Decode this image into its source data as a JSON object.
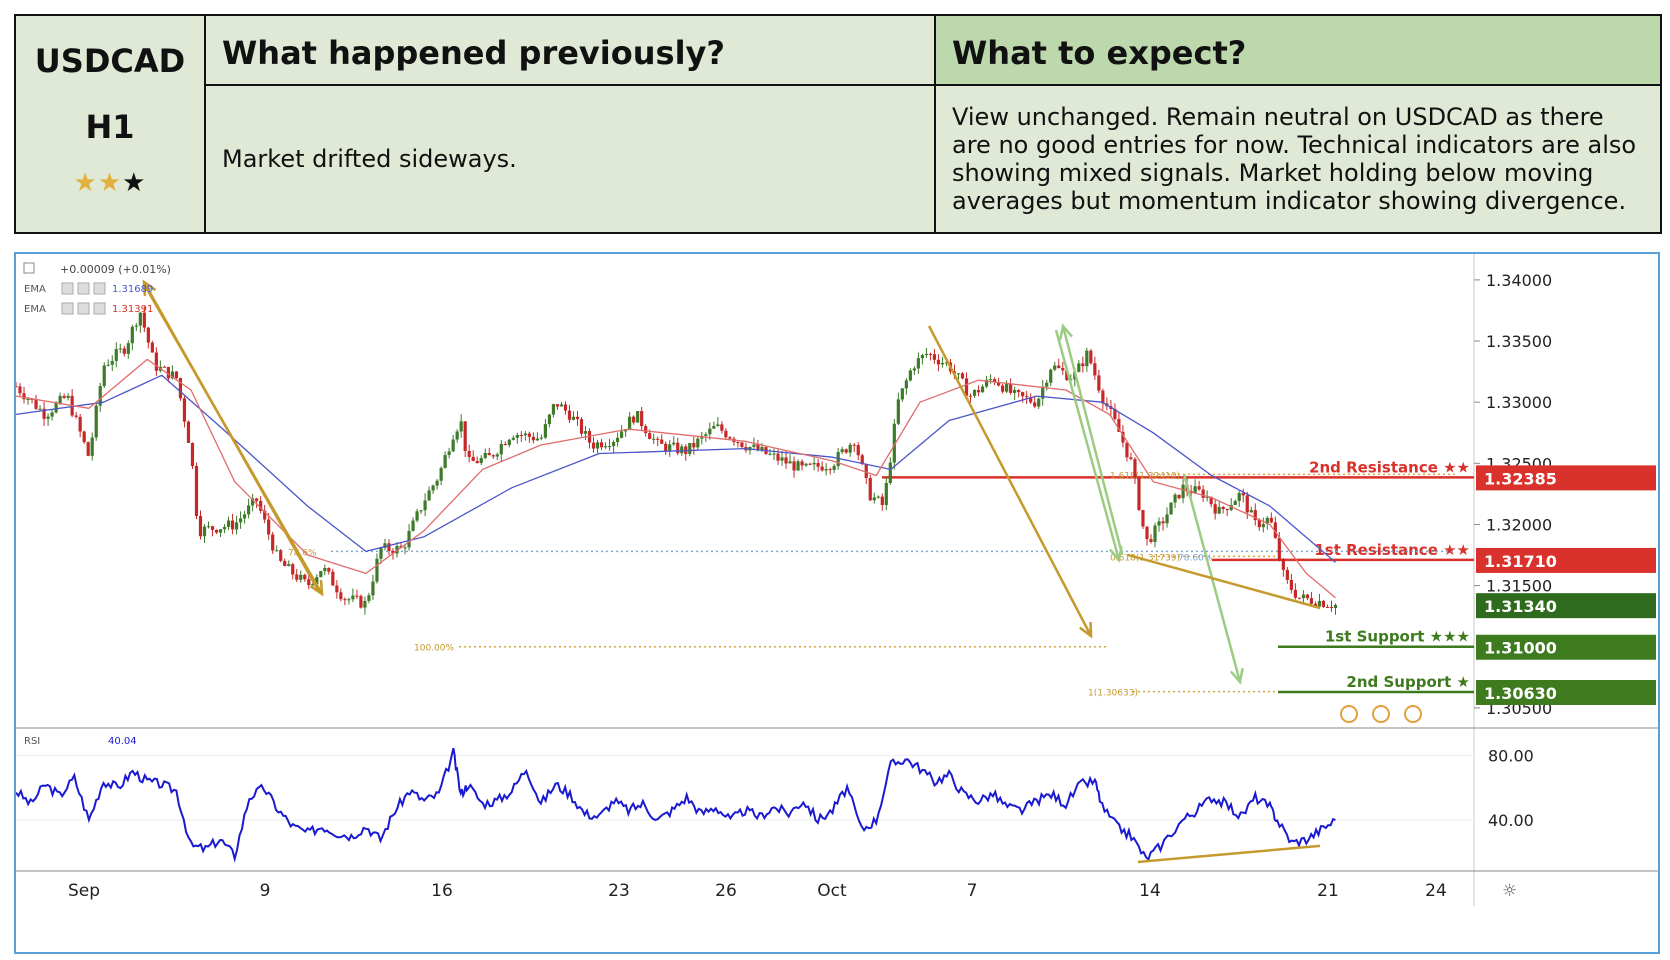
{
  "header": {
    "symbol": "USDCAD",
    "timeframe": "H1",
    "stars_filled": 2,
    "stars_total": 3,
    "prev_title": "What happened previously?",
    "prev_text": "Market drifted sideways.",
    "next_title": "What to expect?",
    "next_text": "View unchanged. Remain neutral on USDCAD as there are no good entries for now. Technical indicators are also showing mixed signals. Market holding below moving averages but momentum indicator showing divergence."
  },
  "colors": {
    "resistance": "#d9312b",
    "support": "#3e7a1e",
    "candle_up": "#3d7a2a",
    "candle_down": "#c62828",
    "ema_fast": "#e06c6c",
    "ema_slow": "#4a56c8",
    "rsi": "#1a1ad0",
    "arrow_gold": "#c49a2c",
    "arrow_green": "#9ccc82"
  },
  "chart_data": [
    {
      "type": "candlestick",
      "instrument": "USDCAD",
      "x_labels": [
        "Sep",
        "9",
        "16",
        "23",
        "26",
        "Oct",
        "7",
        "14",
        "21",
        "24"
      ],
      "y_ticks": [
        "1.34000",
        "1.33500",
        "1.33000",
        "1.32500",
        "1.32000",
        "1.31500",
        "1.30500"
      ],
      "ylim": [
        1.3045,
        1.3413
      ],
      "legend": {
        "change": "+0.00009 (+0.01%)",
        "ema1_label": "EMA",
        "ema1_value": "1.31689",
        "ema2_label": "EMA",
        "ema2_value": "1.31391"
      },
      "levels": [
        {
          "name": "2nd Resistance ★★",
          "value": 1.32385,
          "label": "1.32385",
          "kind": "resistance"
        },
        {
          "name": "1st Resistance ★★",
          "value": 1.3171,
          "label": "1.31710",
          "kind": "resistance"
        },
        {
          "name": "1st Support ★★★",
          "value": 1.31,
          "label": "1.31000",
          "kind": "support"
        },
        {
          "name": "2nd Support ★",
          "value": 1.3063,
          "label": "1.30630",
          "kind": "support"
        }
      ],
      "current_price": {
        "value": 1.3134,
        "label": "1.31340"
      },
      "fib_labels": [
        "78.6%",
        "100.00%",
        "1.618(1.32410)",
        "0.618(1.31739)",
        "78.60%",
        "1(1.30633)"
      ],
      "price_path": [
        [
          0.0,
          1.3313
        ],
        [
          0.02,
          1.329
        ],
        [
          0.035,
          1.3305
        ],
        [
          0.05,
          1.3255
        ],
        [
          0.06,
          1.333
        ],
        [
          0.075,
          1.3345
        ],
        [
          0.085,
          1.3375
        ],
        [
          0.095,
          1.333
        ],
        [
          0.11,
          1.332
        ],
        [
          0.12,
          1.326
        ],
        [
          0.125,
          1.3195
        ],
        [
          0.15,
          1.32
        ],
        [
          0.165,
          1.322
        ],
        [
          0.18,
          1.317
        ],
        [
          0.2,
          1.315
        ],
        [
          0.21,
          1.3165
        ],
        [
          0.225,
          1.314
        ],
        [
          0.24,
          1.3135
        ],
        [
          0.25,
          1.318
        ],
        [
          0.265,
          1.318
        ],
        [
          0.28,
          1.322
        ],
        [
          0.29,
          1.324
        ],
        [
          0.3,
          1.3275
        ],
        [
          0.305,
          1.3285
        ],
        [
          0.31,
          1.325
        ],
        [
          0.325,
          1.3255
        ],
        [
          0.34,
          1.3275
        ],
        [
          0.36,
          1.327
        ],
        [
          0.37,
          1.33
        ],
        [
          0.38,
          1.329
        ],
        [
          0.395,
          1.3265
        ],
        [
          0.41,
          1.327
        ],
        [
          0.425,
          1.329
        ],
        [
          0.44,
          1.3265
        ],
        [
          0.46,
          1.326
        ],
        [
          0.48,
          1.328
        ],
        [
          0.5,
          1.3265
        ],
        [
          0.52,
          1.3255
        ],
        [
          0.54,
          1.3245
        ],
        [
          0.56,
          1.325
        ],
        [
          0.575,
          1.327
        ],
        [
          0.585,
          1.3225
        ],
        [
          0.595,
          1.3215
        ],
        [
          0.605,
          1.33
        ],
        [
          0.615,
          1.333
        ],
        [
          0.625,
          1.334
        ],
        [
          0.64,
          1.333
        ],
        [
          0.655,
          1.3305
        ],
        [
          0.67,
          1.332
        ],
        [
          0.685,
          1.3305
        ],
        [
          0.7,
          1.33
        ],
        [
          0.71,
          1.333
        ],
        [
          0.725,
          1.332
        ],
        [
          0.735,
          1.334
        ],
        [
          0.745,
          1.3305
        ],
        [
          0.755,
          1.328
        ],
        [
          0.765,
          1.325
        ],
        [
          0.775,
          1.3185
        ],
        [
          0.785,
          1.32
        ],
        [
          0.8,
          1.323
        ],
        [
          0.815,
          1.3225
        ],
        [
          0.825,
          1.321
        ],
        [
          0.84,
          1.3225
        ],
        [
          0.85,
          1.32
        ],
        [
          0.86,
          1.3205
        ],
        [
          0.87,
          1.3155
        ],
        [
          0.88,
          1.314
        ],
        [
          0.895,
          1.3137
        ],
        [
          0.905,
          1.3134
        ]
      ],
      "ema_fast": [
        [
          0.0,
          1.3305
        ],
        [
          0.05,
          1.3295
        ],
        [
          0.09,
          1.3335
        ],
        [
          0.12,
          1.331
        ],
        [
          0.15,
          1.3235
        ],
        [
          0.2,
          1.3175
        ],
        [
          0.24,
          1.316
        ],
        [
          0.28,
          1.3195
        ],
        [
          0.32,
          1.3245
        ],
        [
          0.36,
          1.3265
        ],
        [
          0.42,
          1.3278
        ],
        [
          0.5,
          1.3268
        ],
        [
          0.56,
          1.3252
        ],
        [
          0.59,
          1.324
        ],
        [
          0.62,
          1.33
        ],
        [
          0.66,
          1.3318
        ],
        [
          0.72,
          1.331
        ],
        [
          0.75,
          1.329
        ],
        [
          0.78,
          1.3235
        ],
        [
          0.82,
          1.3222
        ],
        [
          0.86,
          1.32
        ],
        [
          0.885,
          1.316
        ],
        [
          0.905,
          1.314
        ]
      ],
      "ema_slow": [
        [
          0.0,
          1.329
        ],
        [
          0.06,
          1.33
        ],
        [
          0.1,
          1.3322
        ],
        [
          0.14,
          1.328
        ],
        [
          0.2,
          1.3215
        ],
        [
          0.24,
          1.3178
        ],
        [
          0.28,
          1.319
        ],
        [
          0.34,
          1.323
        ],
        [
          0.4,
          1.3258
        ],
        [
          0.5,
          1.3262
        ],
        [
          0.56,
          1.3255
        ],
        [
          0.6,
          1.3245
        ],
        [
          0.64,
          1.3285
        ],
        [
          0.7,
          1.3305
        ],
        [
          0.745,
          1.33
        ],
        [
          0.78,
          1.3275
        ],
        [
          0.82,
          1.324
        ],
        [
          0.86,
          1.3215
        ],
        [
          0.905,
          1.3169
        ]
      ]
    },
    {
      "type": "line",
      "name": "RSI",
      "value_label": "40.04",
      "y_ticks": [
        "80.00",
        "40.00"
      ],
      "ylim": [
        14,
        92
      ],
      "values": [
        [
          0.0,
          58
        ],
        [
          0.01,
          50
        ],
        [
          0.02,
          62
        ],
        [
          0.03,
          55
        ],
        [
          0.04,
          66
        ],
        [
          0.05,
          40
        ],
        [
          0.06,
          64
        ],
        [
          0.07,
          60
        ],
        [
          0.08,
          70
        ],
        [
          0.09,
          64
        ],
        [
          0.1,
          62
        ],
        [
          0.11,
          58
        ],
        [
          0.12,
          24
        ],
        [
          0.13,
          22
        ],
        [
          0.14,
          28
        ],
        [
          0.15,
          18
        ],
        [
          0.16,
          54
        ],
        [
          0.17,
          60
        ],
        [
          0.18,
          46
        ],
        [
          0.19,
          36
        ],
        [
          0.2,
          32
        ],
        [
          0.21,
          36
        ],
        [
          0.22,
          32
        ],
        [
          0.23,
          30
        ],
        [
          0.24,
          36
        ],
        [
          0.25,
          28
        ],
        [
          0.26,
          46
        ],
        [
          0.27,
          58
        ],
        [
          0.28,
          52
        ],
        [
          0.29,
          56
        ],
        [
          0.3,
          82
        ],
        [
          0.305,
          56
        ],
        [
          0.31,
          62
        ],
        [
          0.32,
          50
        ],
        [
          0.33,
          52
        ],
        [
          0.34,
          58
        ],
        [
          0.35,
          72
        ],
        [
          0.36,
          50
        ],
        [
          0.37,
          62
        ],
        [
          0.38,
          56
        ],
        [
          0.39,
          44
        ],
        [
          0.4,
          42
        ],
        [
          0.41,
          52
        ],
        [
          0.42,
          46
        ],
        [
          0.43,
          50
        ],
        [
          0.44,
          40
        ],
        [
          0.45,
          46
        ],
        [
          0.46,
          54
        ],
        [
          0.47,
          44
        ],
        [
          0.48,
          48
        ],
        [
          0.49,
          40
        ],
        [
          0.5,
          46
        ],
        [
          0.51,
          42
        ],
        [
          0.52,
          48
        ],
        [
          0.53,
          44
        ],
        [
          0.54,
          52
        ],
        [
          0.55,
          40
        ],
        [
          0.56,
          46
        ],
        [
          0.57,
          60
        ],
        [
          0.58,
          34
        ],
        [
          0.59,
          40
        ],
        [
          0.6,
          74
        ],
        [
          0.61,
          78
        ],
        [
          0.62,
          72
        ],
        [
          0.63,
          64
        ],
        [
          0.64,
          68
        ],
        [
          0.65,
          56
        ],
        [
          0.66,
          52
        ],
        [
          0.67,
          56
        ],
        [
          0.68,
          48
        ],
        [
          0.69,
          46
        ],
        [
          0.7,
          52
        ],
        [
          0.71,
          56
        ],
        [
          0.72,
          50
        ],
        [
          0.73,
          62
        ],
        [
          0.74,
          64
        ],
        [
          0.745,
          48
        ],
        [
          0.755,
          36
        ],
        [
          0.765,
          30
        ],
        [
          0.775,
          16
        ],
        [
          0.785,
          24
        ],
        [
          0.8,
          40
        ],
        [
          0.81,
          46
        ],
        [
          0.82,
          54
        ],
        [
          0.83,
          50
        ],
        [
          0.84,
          42
        ],
        [
          0.85,
          54
        ],
        [
          0.86,
          48
        ],
        [
          0.865,
          40
        ],
        [
          0.875,
          26
        ],
        [
          0.885,
          28
        ],
        [
          0.895,
          34
        ],
        [
          0.905,
          40
        ]
      ]
    }
  ]
}
